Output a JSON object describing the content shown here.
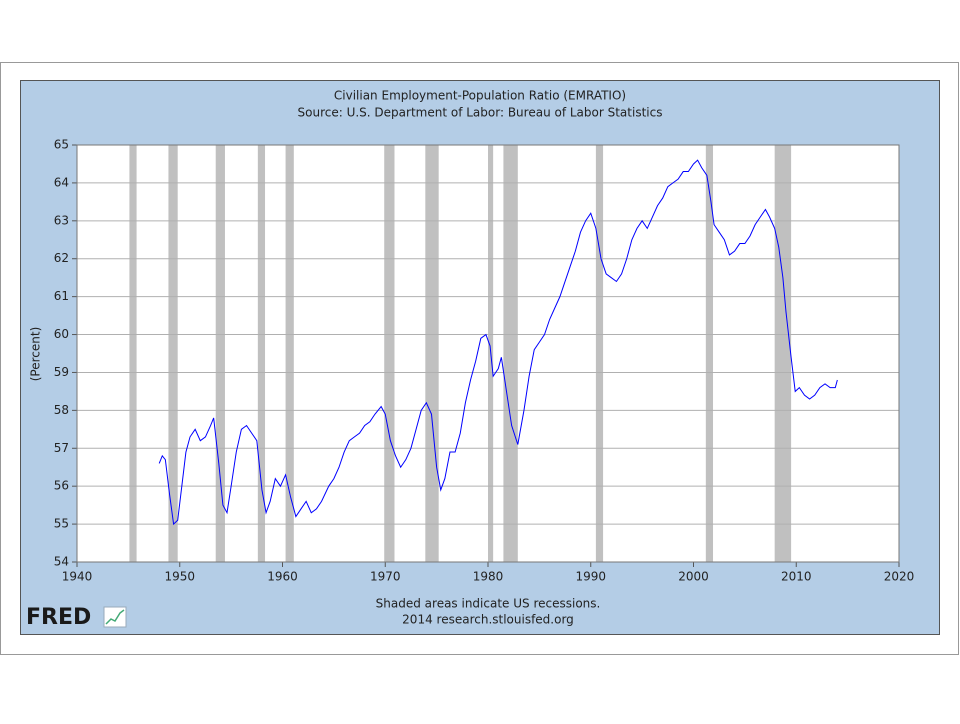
{
  "chart_data": {
    "type": "line",
    "title": "Civilian Employment-Population Ratio (EMRATIO)",
    "subtitle": "Source: U.S. Department of Labor: Bureau of Labor Statistics",
    "ylabel": "(Percent)",
    "notes": [
      "Shaded areas indicate US recessions.",
      "2014 research.stlouisfed.org"
    ],
    "logo": "FRED",
    "color": "#0000ff",
    "recession_color": "#c0c0c0",
    "grid": true,
    "xlim": [
      1940,
      2020
    ],
    "xticks": [
      1940,
      1950,
      1960,
      1970,
      1980,
      1990,
      2000,
      2010,
      2020
    ],
    "ylim": [
      54,
      65
    ],
    "yticks": [
      54,
      55,
      56,
      57,
      58,
      59,
      60,
      61,
      62,
      63,
      64,
      65
    ],
    "recessions": [
      [
        1945.1,
        1945.8
      ],
      [
        1948.9,
        1949.8
      ],
      [
        1953.5,
        1954.4
      ],
      [
        1957.6,
        1958.3
      ],
      [
        1960.3,
        1961.1
      ],
      [
        1969.9,
        1970.9
      ],
      [
        1973.9,
        1975.2
      ],
      [
        1980.0,
        1980.5
      ],
      [
        1981.5,
        1982.9
      ],
      [
        1990.5,
        1991.2
      ],
      [
        2001.2,
        2001.9
      ],
      [
        2007.9,
        2009.5
      ]
    ],
    "x": [
      1948.0,
      1948.3,
      1948.6,
      1949.0,
      1949.4,
      1949.8,
      1950.2,
      1950.6,
      1951.0,
      1951.5,
      1952.0,
      1952.5,
      1953.0,
      1953.3,
      1953.8,
      1954.2,
      1954.6,
      1955.0,
      1955.5,
      1956.0,
      1956.5,
      1957.0,
      1957.5,
      1958.0,
      1958.4,
      1958.8,
      1959.3,
      1959.8,
      1960.3,
      1960.8,
      1961.3,
      1961.8,
      1962.3,
      1962.8,
      1963.3,
      1963.8,
      1964.5,
      1965.0,
      1965.5,
      1966.0,
      1966.5,
      1967.0,
      1967.5,
      1968.0,
      1968.5,
      1969.0,
      1969.6,
      1970.0,
      1970.5,
      1971.0,
      1971.5,
      1972.0,
      1972.5,
      1973.0,
      1973.5,
      1974.0,
      1974.5,
      1975.0,
      1975.4,
      1975.8,
      1976.3,
      1976.8,
      1977.3,
      1977.8,
      1978.3,
      1978.8,
      1979.3,
      1979.8,
      1980.2,
      1980.5,
      1981.0,
      1981.3,
      1981.8,
      1982.3,
      1982.9,
      1983.5,
      1984.0,
      1984.5,
      1985.0,
      1985.5,
      1986.0,
      1986.5,
      1987.0,
      1987.5,
      1988.0,
      1988.5,
      1989.0,
      1989.5,
      1990.0,
      1990.5,
      1991.0,
      1991.5,
      1992.0,
      1992.5,
      1993.0,
      1993.5,
      1994.0,
      1994.5,
      1995.0,
      1995.5,
      1996.0,
      1996.5,
      1997.0,
      1997.5,
      1998.0,
      1998.5,
      1999.0,
      1999.5,
      2000.0,
      2000.4,
      2000.8,
      2001.3,
      2001.7,
      2002.0,
      2002.5,
      2003.0,
      2003.5,
      2004.0,
      2004.5,
      2005.0,
      2005.5,
      2006.0,
      2006.5,
      2007.0,
      2007.4,
      2007.9,
      2008.3,
      2008.7,
      2009.0,
      2009.5,
      2009.9,
      2010.3,
      2010.8,
      2011.3,
      2011.8,
      2012.3,
      2012.8,
      2013.3,
      2013.8,
      2014.0
    ],
    "values": [
      56.6,
      56.8,
      56.7,
      55.8,
      55.0,
      55.1,
      56.0,
      56.9,
      57.3,
      57.5,
      57.2,
      57.3,
      57.6,
      57.8,
      56.6,
      55.5,
      55.3,
      56.0,
      56.9,
      57.5,
      57.6,
      57.4,
      57.2,
      55.9,
      55.3,
      55.6,
      56.2,
      56.0,
      56.3,
      55.7,
      55.2,
      55.4,
      55.6,
      55.3,
      55.4,
      55.6,
      56.0,
      56.2,
      56.5,
      56.9,
      57.2,
      57.3,
      57.4,
      57.6,
      57.7,
      57.9,
      58.1,
      57.9,
      57.2,
      56.8,
      56.5,
      56.7,
      57.0,
      57.5,
      58.0,
      58.2,
      57.9,
      56.5,
      55.9,
      56.2,
      56.9,
      56.9,
      57.4,
      58.2,
      58.8,
      59.3,
      59.9,
      60.0,
      59.7,
      58.9,
      59.1,
      59.4,
      58.5,
      57.6,
      57.1,
      58.0,
      58.9,
      59.6,
      59.8,
      60.0,
      60.4,
      60.7,
      61.0,
      61.4,
      61.8,
      62.2,
      62.7,
      63.0,
      63.2,
      62.8,
      62.0,
      61.6,
      61.5,
      61.4,
      61.6,
      62.0,
      62.5,
      62.8,
      63.0,
      62.8,
      63.1,
      63.4,
      63.6,
      63.9,
      64.0,
      64.1,
      64.3,
      64.3,
      64.5,
      64.6,
      64.4,
      64.2,
      63.5,
      62.9,
      62.7,
      62.5,
      62.1,
      62.2,
      62.4,
      62.4,
      62.6,
      62.9,
      63.1,
      63.3,
      63.1,
      62.8,
      62.3,
      61.5,
      60.6,
      59.4,
      58.5,
      58.6,
      58.4,
      58.3,
      58.4,
      58.6,
      58.7,
      58.6,
      58.6,
      58.8
    ]
  }
}
